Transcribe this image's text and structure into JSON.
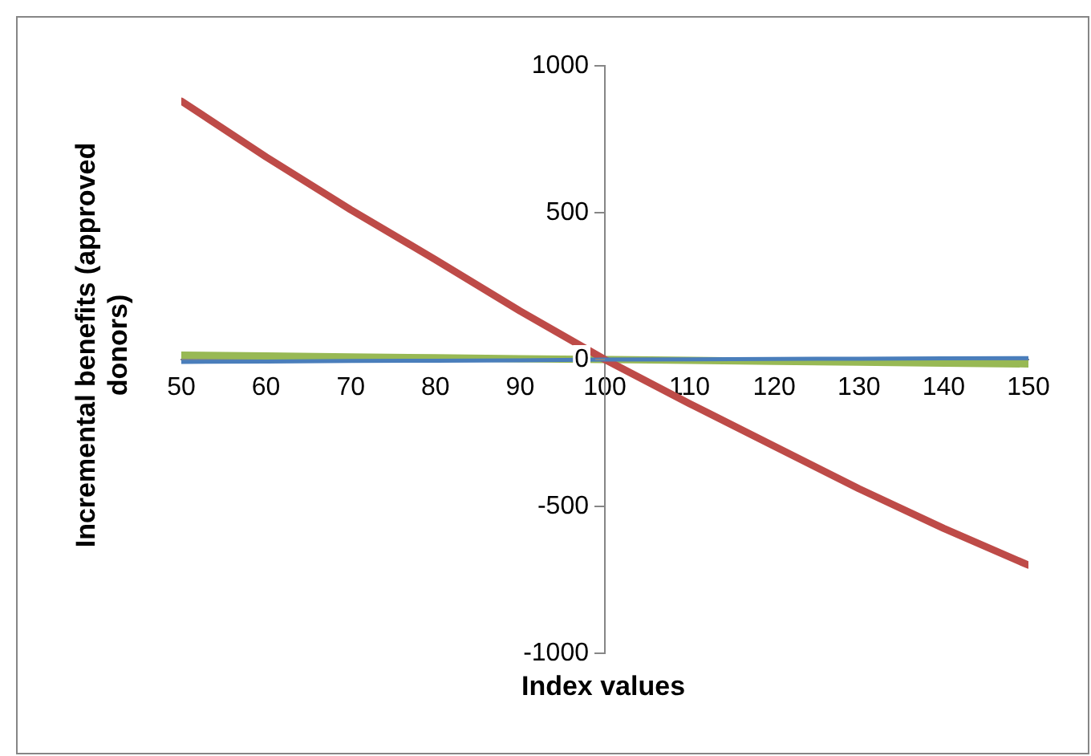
{
  "chart_data": {
    "type": "line",
    "xlabel": "Index values",
    "ylabel": "Incremental benefits (approved donors)",
    "x": [
      50,
      60,
      70,
      80,
      90,
      100,
      110,
      120,
      130,
      140,
      150
    ],
    "series": [
      {
        "color": "#4a7ebb",
        "values": [
          -8,
          -7,
          -5,
          -4,
          -3,
          0,
          1,
          2,
          3,
          4,
          5
        ]
      },
      {
        "color": "#be4b48",
        "values": [
          880,
          690,
          510,
          340,
          165,
          0,
          -150,
          -295,
          -440,
          -575,
          -700
        ]
      },
      {
        "color": "#98b954",
        "values": [
          15,
          12,
          9,
          6,
          3,
          0,
          -3,
          -6,
          -9,
          -12,
          -15
        ]
      }
    ],
    "xlim": [
      50,
      150
    ],
    "xticks": [
      50,
      60,
      70,
      80,
      90,
      100,
      110,
      120,
      130,
      140,
      150
    ],
    "ylim": [
      -1000,
      1000
    ],
    "yticks": [
      -1000,
      -500,
      0,
      500,
      1000
    ],
    "grid": false,
    "legend": false,
    "marker": "none",
    "line_style": "solid"
  }
}
